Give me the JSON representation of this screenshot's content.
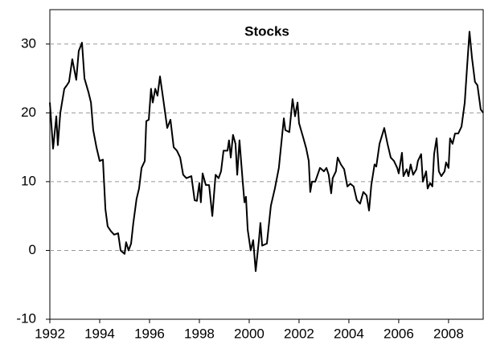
{
  "chart_data": {
    "type": "line",
    "title": "Stocks",
    "x": [
      1992.0,
      1992.13,
      1992.26,
      1992.32,
      1992.42,
      1992.58,
      1992.68,
      1992.77,
      1992.9,
      1993.06,
      1993.16,
      1993.29,
      1993.39,
      1993.55,
      1993.65,
      1993.74,
      1993.87,
      1994.0,
      1994.13,
      1994.23,
      1994.32,
      1994.45,
      1994.58,
      1994.74,
      1994.84,
      1995.0,
      1995.06,
      1995.16,
      1995.26,
      1995.35,
      1995.48,
      1995.58,
      1995.68,
      1995.81,
      1995.87,
      1995.97,
      1996.06,
      1996.13,
      1996.23,
      1996.32,
      1996.42,
      1996.55,
      1996.71,
      1996.84,
      1996.97,
      1997.1,
      1997.23,
      1997.35,
      1997.48,
      1997.68,
      1997.81,
      1997.9,
      1998.0,
      1998.06,
      1998.13,
      1998.26,
      1998.39,
      1998.52,
      1998.65,
      1998.77,
      1998.87,
      1998.97,
      1999.13,
      1999.19,
      1999.26,
      1999.35,
      1999.45,
      1999.52,
      1999.61,
      1999.74,
      1999.81,
      1999.87,
      1999.94,
      2000.06,
      2000.16,
      2000.26,
      2000.39,
      2000.45,
      2000.52,
      2000.71,
      2000.87,
      2001.03,
      2001.19,
      2001.39,
      2001.45,
      2001.61,
      2001.74,
      2001.84,
      2001.94,
      2002.0,
      2002.16,
      2002.29,
      2002.39,
      2002.45,
      2002.52,
      2002.65,
      2002.84,
      2003.0,
      2003.1,
      2003.19,
      2003.29,
      2003.35,
      2003.48,
      2003.55,
      2003.68,
      2003.81,
      2003.94,
      2004.06,
      2004.19,
      2004.32,
      2004.45,
      2004.58,
      2004.71,
      2004.81,
      2004.9,
      2005.03,
      2005.1,
      2005.23,
      2005.42,
      2005.55,
      2005.68,
      2005.81,
      2005.94,
      2006.0,
      2006.13,
      2006.19,
      2006.32,
      2006.39,
      2006.48,
      2006.58,
      2006.71,
      2006.77,
      2006.9,
      2006.97,
      2007.1,
      2007.16,
      2007.26,
      2007.35,
      2007.42,
      2007.52,
      2007.61,
      2007.71,
      2007.84,
      2007.9,
      2008.0,
      2008.06,
      2008.16,
      2008.26,
      2008.39,
      2008.52,
      2008.65,
      2008.74,
      2008.84,
      2008.94,
      2009.06,
      2009.16,
      2009.29,
      2009.39
    ],
    "series": [
      {
        "color": "#000000",
        "values": [
          21.5,
          14.8,
          19.5,
          15.3,
          20,
          23.5,
          24,
          24.5,
          27.8,
          24.8,
          29,
          30.2,
          25,
          23,
          21.5,
          17.5,
          15,
          13,
          13.2,
          6,
          3.5,
          2.8,
          2.3,
          2.5,
          0,
          -0.5,
          1.2,
          0,
          1,
          4,
          7.5,
          9,
          12,
          13,
          18.8,
          19,
          23.5,
          21.5,
          23.5,
          22.5,
          25.3,
          22,
          17.8,
          19,
          15,
          14.5,
          13.5,
          11,
          10.5,
          10.8,
          7.3,
          7.2,
          9.8,
          7,
          11.2,
          9.5,
          9.5,
          5,
          11,
          10.5,
          11.5,
          14.5,
          14.5,
          16,
          13.5,
          16.8,
          15.5,
          11,
          16,
          10,
          7,
          7.8,
          3,
          0,
          1.5,
          -3,
          1.5,
          4,
          0.7,
          1,
          6.5,
          9,
          12,
          19.2,
          17.5,
          17.2,
          22,
          19.5,
          21.5,
          18.5,
          16.5,
          14.8,
          13,
          8.5,
          10,
          10,
          12,
          11.5,
          12,
          11,
          8.3,
          10.5,
          11.5,
          13.5,
          12.5,
          11.8,
          9.3,
          9.7,
          9.3,
          7.3,
          6.8,
          8.5,
          8,
          5.8,
          9.5,
          12.5,
          12.2,
          15.5,
          17.8,
          15.5,
          13.5,
          13,
          12,
          11.2,
          14.2,
          10.8,
          11.8,
          10.8,
          12.5,
          11,
          11.8,
          13,
          14,
          10,
          11.5,
          9,
          9.8,
          9.3,
          14,
          16.3,
          11.5,
          10.8,
          11.5,
          12.8,
          12,
          16.3,
          15.5,
          17,
          17,
          18,
          21.5,
          26.5,
          31.8,
          28,
          24.5,
          24,
          20.5,
          20
        ]
      }
    ],
    "xlim": [
      1992,
      2009.39
    ],
    "xticks": [
      1992,
      1994,
      1996,
      1998,
      2000,
      2002,
      2004,
      2006,
      2008
    ],
    "ylim": [
      -10,
      35
    ],
    "yticks": [
      -10,
      0,
      10,
      20,
      30
    ],
    "grid": true
  }
}
